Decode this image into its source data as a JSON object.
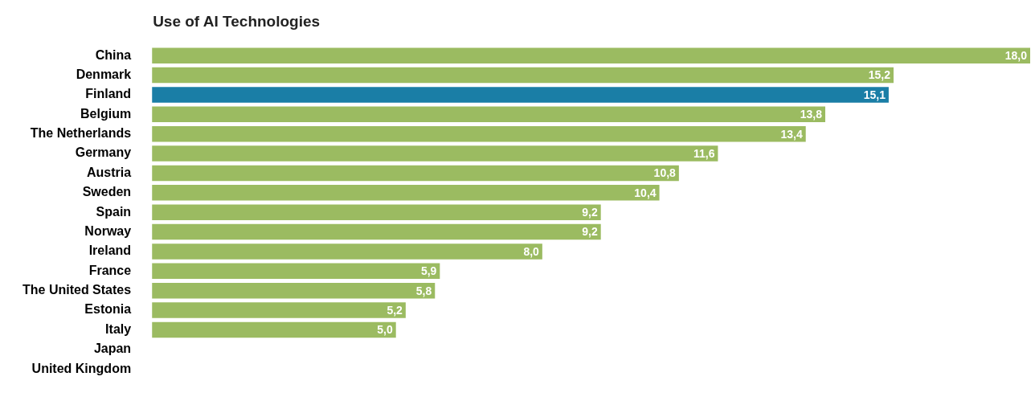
{
  "chart_data": {
    "type": "bar",
    "orientation": "horizontal",
    "title": "Use of AI Technologies",
    "categories": [
      "China",
      "Denmark",
      "Finland",
      "Belgium",
      "The Netherlands",
      "Germany",
      "Austria",
      "Sweden",
      "Spain",
      "Norway",
      "Ireland",
      "France",
      "The United States",
      "Estonia",
      "Italy",
      "Japan",
      "United Kingdom"
    ],
    "values": [
      18.0,
      15.2,
      15.1,
      13.8,
      13.4,
      11.6,
      10.8,
      10.4,
      9.2,
      9.2,
      8.0,
      5.9,
      5.8,
      5.2,
      5.0,
      null,
      null
    ],
    "colors": [
      "#9bbb61",
      "#9bbb61",
      "#1a7ea6",
      "#9bbb61",
      "#9bbb61",
      "#9bbb61",
      "#9bbb61",
      "#9bbb61",
      "#9bbb61",
      "#9bbb61",
      "#9bbb61",
      "#9bbb61",
      "#9bbb61",
      "#9bbb61",
      "#9bbb61",
      "#9bbb61",
      "#9bbb61"
    ],
    "value_labels": [
      "18,0",
      "15,2",
      "15,1",
      "13,8",
      "13,4",
      "11,6",
      "10,8",
      "10,4",
      "9,2",
      "9,2",
      "8,0",
      "5,9",
      "5,8",
      "5,2",
      "5,0",
      null,
      null
    ],
    "legend": false
  }
}
